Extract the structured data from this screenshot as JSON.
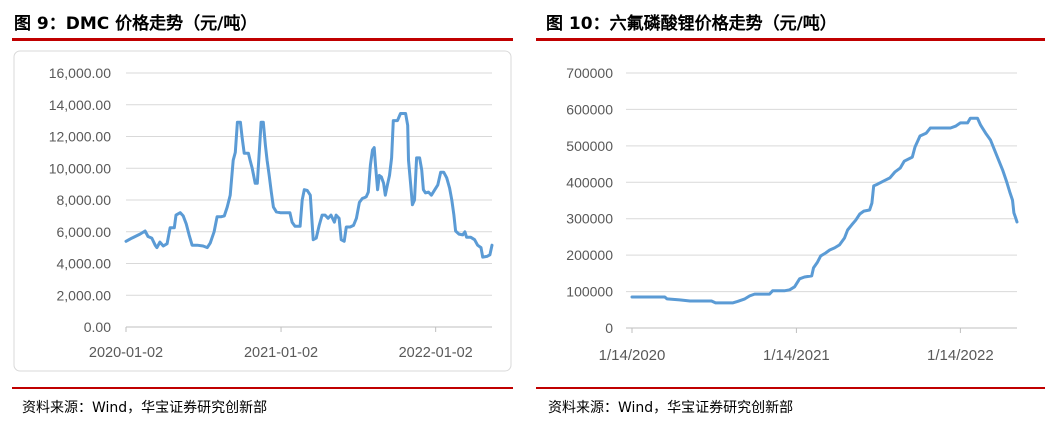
{
  "colors": {
    "rule": "#c00000",
    "line": "#5b9bd5",
    "grid": "#d9d9d9",
    "axis": "#bfbfbf",
    "tick_text": "#595959"
  },
  "sources": [
    "资料来源：Wind，华宝证券研究创新部",
    "资料来源：Wind，华宝证券研究创新部"
  ],
  "chart_data": [
    {
      "type": "line",
      "title": "图 9：DMC 价格走势（元/吨）",
      "xlabel": "",
      "ylabel": "",
      "ylim": [
        0,
        16000
      ],
      "yticks": [
        0,
        2000,
        4000,
        6000,
        8000,
        10000,
        12000,
        14000,
        16000
      ],
      "ytick_labels": [
        "0.00",
        "2,000.00",
        "4,000.00",
        "6,000.00",
        "8,000.00",
        "10,000.00",
        "12,000.00",
        "14,000.00",
        "16,000.00"
      ],
      "xlim": [
        "2020-01-02",
        "2022-05-15"
      ],
      "xticks": [
        "2020-01-02",
        "2021-01-02",
        "2022-01-02"
      ],
      "xtick_labels": [
        "2020-01-02",
        "2021-01-02",
        "2022-01-02"
      ],
      "grid": true,
      "legend": "none",
      "series": [
        {
          "x": [
            "2020-01-02",
            "2020-01-16",
            "2020-02-04",
            "2020-02-16",
            "2020-02-23",
            "2020-03-03",
            "2020-03-11",
            "2020-03-15",
            "2020-03-22",
            "2020-03-30",
            "2020-04-08",
            "2020-04-15",
            "2020-04-25",
            "2020-04-29",
            "2020-05-09",
            "2020-05-16",
            "2020-05-23",
            "2020-05-30",
            "2020-06-06",
            "2020-06-18",
            "2020-07-02",
            "2020-07-12",
            "2020-07-19",
            "2020-07-28",
            "2020-08-04",
            "2020-08-14",
            "2020-08-21",
            "2020-08-28",
            "2020-09-04",
            "2020-09-11",
            "2020-09-16",
            "2020-09-21",
            "2020-09-28",
            "2020-10-02",
            "2020-10-07",
            "2020-10-17",
            "2020-10-21",
            "2020-10-26",
            "2020-11-02",
            "2020-11-07",
            "2020-11-12",
            "2020-11-16",
            "2020-11-21",
            "2020-11-26",
            "2020-11-30",
            "2020-12-05",
            "2020-12-10",
            "2020-12-15",
            "2020-12-22",
            "2020-12-31",
            "2021-01-14",
            "2021-01-23",
            "2021-01-28",
            "2021-02-04",
            "2021-02-16",
            "2021-02-21",
            "2021-02-26",
            "2021-03-05",
            "2021-03-12",
            "2021-03-19",
            "2021-03-26",
            "2021-04-02",
            "2021-04-09",
            "2021-04-16",
            "2021-04-23",
            "2021-04-30",
            "2021-05-08",
            "2021-05-12",
            "2021-05-19",
            "2021-05-24",
            "2021-05-31",
            "2021-06-05",
            "2021-06-14",
            "2021-06-22",
            "2021-06-29",
            "2021-07-06",
            "2021-07-13",
            "2021-07-18",
            "2021-07-22",
            "2021-07-27",
            "2021-08-01",
            "2021-08-06",
            "2021-08-10",
            "2021-08-13",
            "2021-08-18",
            "2021-08-22",
            "2021-08-27",
            "2021-09-01",
            "2021-09-05",
            "2021-09-10",
            "2021-09-15",
            "2021-09-20",
            "2021-09-24",
            "2021-10-04",
            "2021-10-11",
            "2021-10-23",
            "2021-10-28",
            "2021-10-30",
            "2021-11-04",
            "2021-11-08",
            "2021-11-13",
            "2021-11-18",
            "2021-11-25",
            "2021-11-30",
            "2021-12-04",
            "2021-12-09",
            "2021-12-16",
            "2021-12-23",
            "2021-12-31",
            "2022-01-07",
            "2022-01-14",
            "2022-01-21",
            "2022-01-28",
            "2022-02-04",
            "2022-02-09",
            "2022-02-14",
            "2022-02-18",
            "2022-02-26",
            "2022-03-07",
            "2022-03-12",
            "2022-03-16",
            "2022-03-26",
            "2022-04-04",
            "2022-04-11",
            "2022-04-19",
            "2022-04-23",
            "2022-05-03",
            "2022-05-10",
            "2022-05-15"
          ],
          "y": [
            5400,
            5600,
            5850,
            6050,
            5700,
            5600,
            5150,
            5000,
            5350,
            5100,
            5250,
            6250,
            6250,
            7050,
            7200,
            7000,
            6500,
            5800,
            5150,
            5150,
            5100,
            5000,
            5300,
            6000,
            6950,
            6950,
            7000,
            7550,
            8300,
            10500,
            11000,
            12900,
            12900,
            11950,
            10950,
            10950,
            10500,
            10000,
            9050,
            9050,
            11150,
            12900,
            12900,
            11450,
            10500,
            9550,
            8500,
            7550,
            7250,
            7200,
            7200,
            7200,
            6600,
            6350,
            6350,
            8000,
            8650,
            8600,
            8300,
            5500,
            5600,
            6400,
            7050,
            7050,
            6850,
            7050,
            6600,
            7050,
            6850,
            5500,
            5400,
            6300,
            6300,
            6400,
            6850,
            7850,
            8100,
            8150,
            8200,
            8500,
            10200,
            11150,
            11300,
            10200,
            8650,
            9550,
            9450,
            9050,
            8300,
            8950,
            9550,
            10650,
            13000,
            13000,
            13450,
            13450,
            12700,
            10500,
            8950,
            7700,
            8000,
            10650,
            10650,
            9900,
            8650,
            8450,
            8500,
            8300,
            8650,
            8950,
            9750,
            9750,
            9400,
            8750,
            8000,
            7050,
            6050,
            5850,
            5800,
            6000,
            5650,
            5650,
            5500,
            5150,
            5000,
            4400,
            4450,
            4550,
            5150
          ]
        }
      ]
    },
    {
      "type": "line",
      "title": "图 10：六氟磷酸锂价格走势（元/吨）",
      "xlabel": "",
      "ylabel": "",
      "ylim": [
        0,
        700000
      ],
      "yticks": [
        0,
        100000,
        200000,
        300000,
        400000,
        500000,
        600000,
        700000
      ],
      "ytick_labels": [
        "0",
        "100000",
        "200000",
        "300000",
        "400000",
        "500000",
        "600000",
        "700000"
      ],
      "xlim": [
        "2020-01-14",
        "2022-05-20"
      ],
      "xticks": [
        "2020-01-14",
        "2021-01-14",
        "2022-01-14"
      ],
      "xtick_labels": [
        "1/14/2020",
        "1/14/2021",
        "1/14/2022"
      ],
      "grid": true,
      "legend": "none",
      "series": [
        {
          "x": [
            "2020-01-14",
            "2020-03-27",
            "2020-04-01",
            "2020-04-29",
            "2020-05-22",
            "2020-07-09",
            "2020-07-18",
            "2020-08-25",
            "2020-09-05",
            "2020-09-21",
            "2020-10-02",
            "2020-10-13",
            "2020-11-15",
            "2020-11-22",
            "2020-12-18",
            "2020-12-30",
            "2021-01-10",
            "2021-01-21",
            "2021-02-01",
            "2021-02-17",
            "2021-02-21",
            "2021-03-02",
            "2021-03-09",
            "2021-03-20",
            "2021-03-29",
            "2021-04-09",
            "2021-04-20",
            "2021-05-01",
            "2021-05-08",
            "2021-05-17",
            "2021-05-26",
            "2021-06-04",
            "2021-06-13",
            "2021-06-26",
            "2021-07-01",
            "2021-07-05",
            "2021-07-14",
            "2021-07-28",
            "2021-08-10",
            "2021-08-21",
            "2021-09-02",
            "2021-09-11",
            "2021-09-29",
            "2021-10-05",
            "2021-10-16",
            "2021-10-30",
            "2021-11-08",
            "2021-12-23",
            "2022-01-03",
            "2022-01-14",
            "2022-01-30",
            "2022-02-05",
            "2022-02-21",
            "2022-02-28",
            "2022-03-11",
            "2022-03-22",
            "2022-03-31",
            "2022-04-09",
            "2022-04-18",
            "2022-04-27",
            "2022-05-04",
            "2022-05-10",
            "2022-05-13",
            "2022-05-17",
            "2022-05-20"
          ],
          "y": [
            85000,
            85000,
            80000,
            77000,
            74000,
            74000,
            69000,
            69000,
            73000,
            80000,
            88000,
            93000,
            93000,
            102000,
            102000,
            105000,
            113000,
            135000,
            140000,
            143000,
            165000,
            181000,
            198000,
            206000,
            214000,
            220000,
            228000,
            247000,
            269000,
            283000,
            296000,
            313000,
            321000,
            324000,
            343000,
            390000,
            395000,
            404000,
            412000,
            428000,
            439000,
            458000,
            469000,
            497000,
            527000,
            535000,
            549000,
            549000,
            554000,
            563000,
            563000,
            576000,
            576000,
            557000,
            535000,
            516000,
            489000,
            461000,
            434000,
            401000,
            373000,
            351000,
            316000,
            302000,
            291000
          ]
        }
      ]
    }
  ]
}
